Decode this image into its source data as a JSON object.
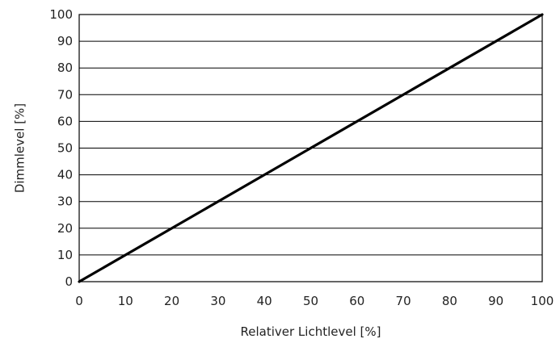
{
  "chart_data": {
    "type": "line",
    "title": "",
    "xlabel": "Relativer Lichtlevel [%]",
    "ylabel": "Dimmlevel [%]",
    "xlim": [
      0,
      100
    ],
    "ylim": [
      0,
      100
    ],
    "xticks": [
      0,
      10,
      20,
      30,
      40,
      50,
      60,
      70,
      80,
      90,
      100
    ],
    "yticks": [
      0,
      10,
      20,
      30,
      40,
      50,
      60,
      70,
      80,
      90,
      100
    ],
    "grid": {
      "horizontal": true,
      "vertical": false
    },
    "legend": "none",
    "series": [
      {
        "x": [
          0,
          100
        ],
        "y": [
          0,
          100
        ],
        "color": "#000000"
      }
    ],
    "colors": {
      "grid": "#000000",
      "frame": "#000000",
      "line": "#000000",
      "text": "#222222"
    }
  }
}
